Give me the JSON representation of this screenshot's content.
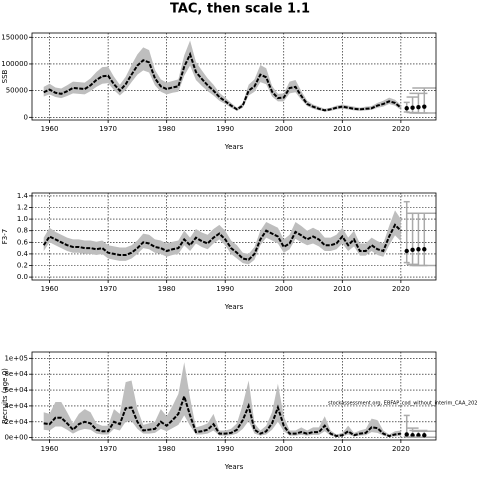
{
  "title": "TAC, then scale 1.1",
  "chart_data": [
    {
      "type": "line",
      "ylabel": "SSB",
      "xlabel": "Years",
      "x": [
        1959,
        1960,
        1961,
        1962,
        1963,
        1964,
        1965,
        1966,
        1967,
        1968,
        1969,
        1970,
        1971,
        1972,
        1973,
        1974,
        1975,
        1976,
        1977,
        1978,
        1979,
        1980,
        1981,
        1982,
        1983,
        1984,
        1985,
        1986,
        1987,
        1988,
        1989,
        1990,
        1991,
        1992,
        1993,
        1994,
        1995,
        1996,
        1997,
        1998,
        1999,
        2000,
        2001,
        2002,
        2003,
        2004,
        2005,
        2006,
        2007,
        2008,
        2009,
        2010,
        2011,
        2012,
        2013,
        2014,
        2015,
        2016,
        2017,
        2018,
        2019,
        2020
      ],
      "series": [
        {
          "color": "#000000",
          "band_color": "#bebebe",
          "values": [
            47000,
            52000,
            46000,
            44000,
            49000,
            55000,
            54000,
            53000,
            60000,
            70000,
            77000,
            78000,
            62000,
            50000,
            62000,
            80000,
            97000,
            107000,
            103000,
            73000,
            58000,
            53000,
            56000,
            58000,
            95000,
            118000,
            85000,
            72000,
            60000,
            50000,
            38000,
            30000,
            22000,
            15000,
            22000,
            50000,
            58000,
            80000,
            75000,
            48000,
            36000,
            37000,
            55000,
            57000,
            40000,
            25000,
            20000,
            16000,
            13000,
            15000,
            18000,
            20000,
            18000,
            16000,
            15000,
            16000,
            17000,
            22000,
            25000,
            30000,
            27000,
            18000
          ],
          "lower": [
            39000,
            43000,
            38000,
            36000,
            40000,
            45000,
            44000,
            43000,
            49000,
            57000,
            63000,
            64000,
            51000,
            41000,
            51000,
            66000,
            80000,
            88000,
            84000,
            60000,
            48000,
            43000,
            46000,
            48000,
            78000,
            97000,
            70000,
            59000,
            49000,
            41000,
            31000,
            25000,
            18000,
            12000,
            18000,
            41000,
            48000,
            66000,
            62000,
            39000,
            30000,
            30000,
            45000,
            47000,
            33000,
            21000,
            16000,
            13000,
            11000,
            12000,
            15000,
            16000,
            15000,
            13000,
            12000,
            13000,
            14000,
            18000,
            20000,
            25000,
            22000,
            14000
          ],
          "upper": [
            57000,
            63000,
            56000,
            54000,
            60000,
            67000,
            66000,
            65000,
            73000,
            85000,
            94000,
            95000,
            76000,
            61000,
            76000,
            98000,
            118000,
            131000,
            126000,
            89000,
            71000,
            65000,
            68000,
            71000,
            116000,
            144000,
            104000,
            88000,
            73000,
            61000,
            46000,
            37000,
            27000,
            18000,
            27000,
            61000,
            71000,
            98000,
            92000,
            59000,
            44000,
            45000,
            67000,
            70000,
            49000,
            31000,
            24000,
            20000,
            16000,
            18000,
            22000,
            24000,
            22000,
            20000,
            18000,
            20000,
            21000,
            27000,
            31000,
            37000,
            33000,
            23000
          ]
        }
      ],
      "forecast": {
        "color": "#000000",
        "bar_color": "#aaaaaa",
        "x": [
          2021,
          2022,
          2023,
          2024
        ],
        "values": [
          17000,
          18000,
          19000,
          20000
        ],
        "lower": [
          10000,
          9000,
          8000,
          8000
        ],
        "upper": [
          28000,
          38000,
          45000,
          55000
        ]
      },
      "xlim": [
        1957,
        2026
      ],
      "xticks": [
        1960,
        1970,
        1980,
        1990,
        2000,
        2010,
        2020
      ],
      "ylim": [
        -5000,
        158000
      ],
      "yticks": [
        0,
        50000,
        100000,
        150000
      ],
      "grid": true
    },
    {
      "type": "line",
      "ylabel": "F3-7",
      "xlabel": "Years",
      "x": [
        1959,
        1960,
        1961,
        1962,
        1963,
        1964,
        1965,
        1966,
        1967,
        1968,
        1969,
        1970,
        1971,
        1972,
        1973,
        1974,
        1975,
        1976,
        1977,
        1978,
        1979,
        1980,
        1981,
        1982,
        1983,
        1984,
        1985,
        1986,
        1987,
        1988,
        1989,
        1990,
        1991,
        1992,
        1993,
        1994,
        1995,
        1996,
        1997,
        1998,
        1999,
        2000,
        2001,
        2002,
        2003,
        2004,
        2005,
        2006,
        2007,
        2008,
        2009,
        2010,
        2011,
        2012,
        2013,
        2014,
        2015,
        2016,
        2017,
        2018,
        2019,
        2020
      ],
      "series": [
        {
          "color": "#000000",
          "band_color": "#bebebe",
          "values": [
            0.55,
            0.7,
            0.65,
            0.6,
            0.55,
            0.52,
            0.52,
            0.5,
            0.5,
            0.48,
            0.5,
            0.42,
            0.4,
            0.38,
            0.38,
            0.42,
            0.5,
            0.6,
            0.58,
            0.52,
            0.5,
            0.45,
            0.48,
            0.5,
            0.65,
            0.55,
            0.68,
            0.62,
            0.58,
            0.68,
            0.75,
            0.65,
            0.5,
            0.42,
            0.32,
            0.3,
            0.4,
            0.65,
            0.8,
            0.75,
            0.7,
            0.52,
            0.58,
            0.78,
            0.72,
            0.65,
            0.7,
            0.65,
            0.55,
            0.55,
            0.58,
            0.7,
            0.55,
            0.65,
            0.45,
            0.45,
            0.55,
            0.48,
            0.45,
            0.7,
            0.9,
            0.8
          ],
          "lower": [
            0.45,
            0.6,
            0.55,
            0.5,
            0.45,
            0.42,
            0.42,
            0.4,
            0.4,
            0.38,
            0.4,
            0.32,
            0.3,
            0.28,
            0.28,
            0.32,
            0.4,
            0.5,
            0.48,
            0.42,
            0.4,
            0.35,
            0.38,
            0.4,
            0.55,
            0.45,
            0.58,
            0.52,
            0.48,
            0.58,
            0.65,
            0.55,
            0.4,
            0.32,
            0.24,
            0.22,
            0.3,
            0.55,
            0.68,
            0.63,
            0.58,
            0.42,
            0.48,
            0.66,
            0.6,
            0.55,
            0.58,
            0.53,
            0.45,
            0.45,
            0.48,
            0.58,
            0.45,
            0.53,
            0.37,
            0.37,
            0.45,
            0.38,
            0.35,
            0.55,
            0.72,
            0.62
          ],
          "upper": [
            0.68,
            0.85,
            0.78,
            0.73,
            0.68,
            0.65,
            0.65,
            0.63,
            0.63,
            0.61,
            0.63,
            0.55,
            0.53,
            0.51,
            0.51,
            0.55,
            0.63,
            0.75,
            0.73,
            0.65,
            0.63,
            0.58,
            0.61,
            0.63,
            0.8,
            0.68,
            0.83,
            0.77,
            0.73,
            0.83,
            0.9,
            0.8,
            0.63,
            0.55,
            0.42,
            0.4,
            0.52,
            0.8,
            0.95,
            0.9,
            0.85,
            0.65,
            0.73,
            0.95,
            0.88,
            0.8,
            0.85,
            0.8,
            0.68,
            0.68,
            0.73,
            0.85,
            0.68,
            0.8,
            0.58,
            0.58,
            0.68,
            0.62,
            0.58,
            0.88,
            1.15,
            1.0
          ]
        }
      ],
      "forecast": {
        "color": "#000000",
        "bar_color": "#aaaaaa",
        "x": [
          2021,
          2022,
          2023,
          2024
        ],
        "values": [
          0.45,
          0.47,
          0.48,
          0.48
        ],
        "lower": [
          0.25,
          0.22,
          0.2,
          0.2
        ],
        "upper": [
          1.3,
          1.1,
          1.1,
          1.1
        ]
      },
      "xlim": [
        1957,
        2026
      ],
      "xticks": [
        1960,
        1970,
        1980,
        1990,
        2000,
        2010,
        2020
      ],
      "ylim": [
        -0.05,
        1.45
      ],
      "yticks": [
        {
          "value": 0,
          "label": "0.0"
        },
        0.2,
        0.4,
        0.6,
        0.8,
        {
          "value": 1,
          "label": "1.0"
        },
        1.2,
        1.4
      ],
      "grid": true
    },
    {
      "type": "line",
      "ylabel": "Recruits (age 0)",
      "xlabel": "Years",
      "annotation": "stockassessment.org, EBFAP_cod_without_interim_CAA_202",
      "x": [
        1959,
        1960,
        1961,
        1962,
        1963,
        1964,
        1965,
        1966,
        1967,
        1968,
        1969,
        1970,
        1971,
        1972,
        1973,
        1974,
        1975,
        1976,
        1977,
        1978,
        1979,
        1980,
        1981,
        1982,
        1983,
        1984,
        1985,
        1986,
        1987,
        1988,
        1989,
        1990,
        1991,
        1992,
        1993,
        1994,
        1995,
        1996,
        1997,
        1998,
        1999,
        2000,
        2001,
        2002,
        2003,
        2004,
        2005,
        2006,
        2007,
        2008,
        2009,
        2010,
        2011,
        2012,
        2013,
        2014,
        2015,
        2016,
        2017,
        2018,
        2019,
        2020
      ],
      "series": [
        {
          "color": "#000000",
          "band_color": "#bebebe",
          "values": [
            18000,
            17000,
            25000,
            25000,
            18000,
            10000,
            17000,
            20000,
            18000,
            10000,
            8000,
            8000,
            20000,
            17000,
            37000,
            38000,
            20000,
            9000,
            10000,
            11000,
            20000,
            15000,
            22000,
            30000,
            52000,
            28000,
            7000,
            8000,
            10000,
            17000,
            5000,
            5000,
            6000,
            10000,
            22000,
            40000,
            10000,
            5000,
            8000,
            18000,
            38000,
            15000,
            5000,
            5000,
            7000,
            5000,
            7000,
            7000,
            15000,
            5000,
            2000,
            3000,
            8000,
            3000,
            5000,
            6000,
            13000,
            12000,
            5000,
            2000,
            4000,
            5000
          ],
          "lower": [
            10000,
            9000,
            14000,
            14000,
            10000,
            5000,
            9000,
            11000,
            10000,
            5000,
            4000,
            4000,
            11000,
            9000,
            20000,
            21000,
            11000,
            5000,
            5000,
            6000,
            11000,
            8000,
            12000,
            16000,
            28000,
            15000,
            4000,
            4000,
            5000,
            9000,
            2500,
            2500,
            3000,
            5000,
            11000,
            21000,
            5000,
            2500,
            4000,
            10000,
            20000,
            8000,
            2500,
            2500,
            3500,
            2500,
            3500,
            3500,
            8000,
            2500,
            1000,
            1500,
            4000,
            1500,
            2500,
            3000,
            7000,
            6000,
            2500,
            1000,
            1500,
            2000
          ],
          "upper": [
            32000,
            30000,
            45000,
            45000,
            32000,
            18000,
            30000,
            36000,
            32000,
            18000,
            15000,
            15000,
            36000,
            30000,
            70000,
            72000,
            36000,
            16000,
            18000,
            20000,
            36000,
            27000,
            40000,
            55000,
            95000,
            50000,
            13000,
            15000,
            18000,
            30000,
            9000,
            9000,
            11000,
            18000,
            42000,
            72000,
            18000,
            9000,
            15000,
            32000,
            68000,
            27000,
            9000,
            9000,
            13000,
            9000,
            13000,
            13000,
            27000,
            9000,
            4000,
            6000,
            15000,
            6000,
            9000,
            11000,
            24000,
            22000,
            9000,
            4000,
            8000,
            9000
          ]
        }
      ],
      "forecast": {
        "color": "#000000",
        "bar_color": "#aaaaaa",
        "x": [
          2021,
          2022,
          2023,
          2024
        ],
        "values": [
          4000,
          3000,
          3000,
          3000
        ],
        "lower": [
          1000,
          500,
          500,
          500
        ],
        "upper": [
          28000,
          12000,
          9000,
          8000
        ]
      },
      "xlim": [
        1957,
        2026
      ],
      "xticks": [
        1960,
        1970,
        1980,
        1990,
        2000,
        2010,
        2020
      ],
      "ylim": [
        -3000,
        108000
      ],
      "yticks": [
        {
          "value": 0,
          "label": "0e+00"
        },
        {
          "value": 20000,
          "label": "2e+04"
        },
        {
          "value": 40000,
          "label": "4e+04"
        },
        {
          "value": 60000,
          "label": "6e+04"
        },
        {
          "value": 80000,
          "label": "8e+04"
        },
        {
          "value": 100000,
          "label": "1e+05"
        }
      ],
      "grid": true
    }
  ]
}
